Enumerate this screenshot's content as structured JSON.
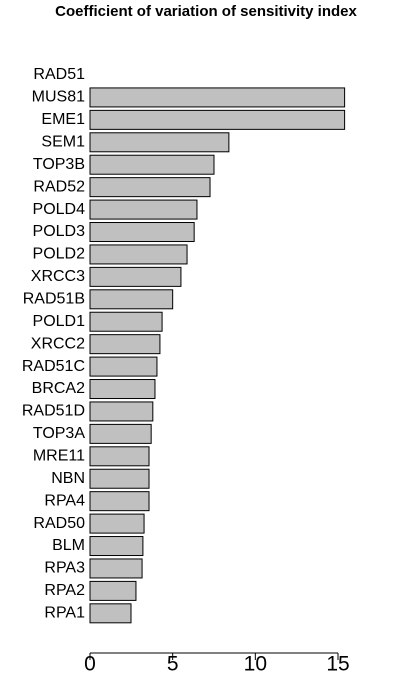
{
  "chart_data": {
    "type": "bar",
    "orientation": "horizontal",
    "title": "Coefficient of variation of sensitivity index",
    "categories": [
      "RAD51",
      "MUS81",
      "EME1",
      "SEM1",
      "TOP3B",
      "RAD52",
      "POLD4",
      "POLD3",
      "POLD2",
      "XRCC3",
      "RAD51B",
      "POLD1",
      "XRCC2",
      "RAD51C",
      "BRCA2",
      "RAD51D",
      "TOP3A",
      "MRE11",
      "NBN",
      "RPA4",
      "RAD50",
      "BLM",
      "RPA3",
      "RPA2",
      "RPA1"
    ],
    "values": [
      0,
      15.4,
      15.4,
      8.4,
      7.5,
      7.26,
      6.47,
      6.3,
      5.87,
      5.5,
      5.0,
      4.36,
      4.23,
      4.05,
      3.93,
      3.8,
      3.7,
      3.57,
      3.57,
      3.57,
      3.27,
      3.2,
      3.15,
      2.78,
      2.48
    ],
    "color": "#c0c0c0",
    "xlim": [
      0,
      15
    ],
    "xticks": [
      0,
      5,
      10,
      15
    ]
  }
}
